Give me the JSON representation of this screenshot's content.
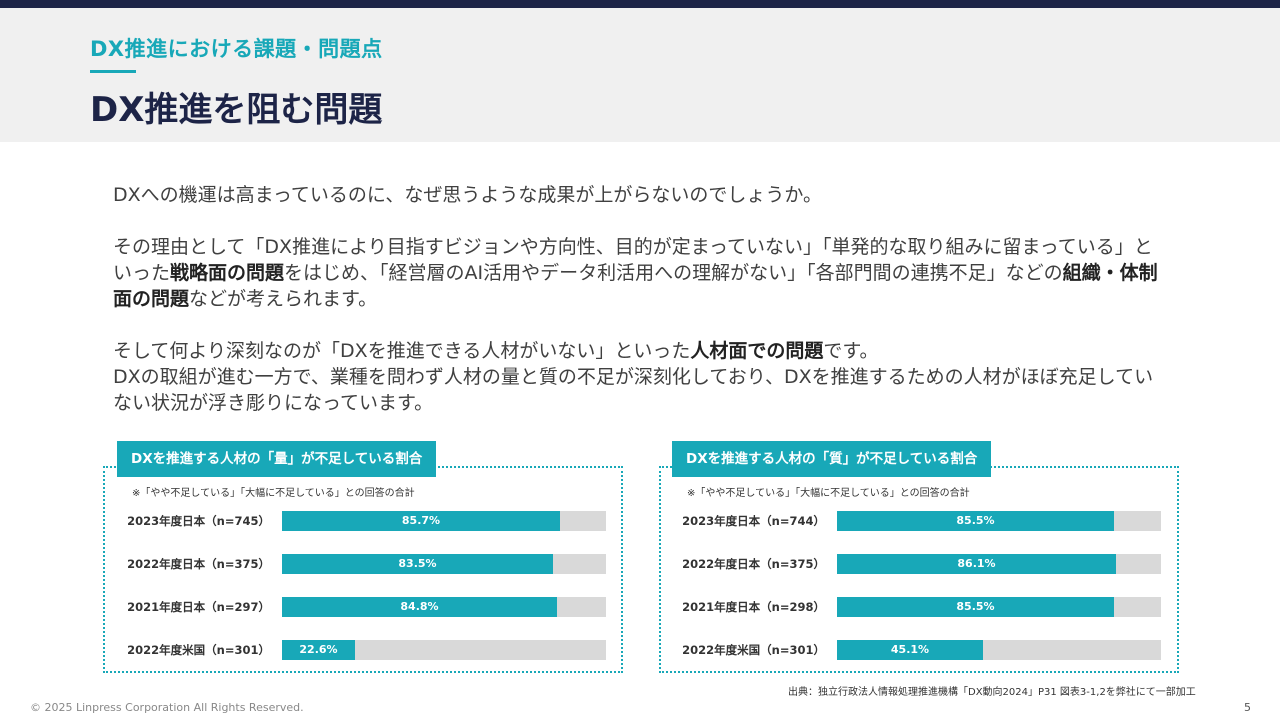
{
  "header": {
    "eyebrow": "DX推進における課題・問題点",
    "title": "DX推進を阻む問題"
  },
  "body": {
    "p1": "DXへの機運は高まっているのに、なぜ思うような成果が上がらないのでしょうか。",
    "p2": {
      "t1": "その理由として「DX推進により目指すビジョンや方向性、目的が定まっていない」「単発的な取り組みに留まっている」といった",
      "b1": "戦略面の問題",
      "t2": "をはじめ、「経営層のAI活用やデータ利活用への理解がない」「各部門間の連携不足」などの",
      "b2": "組織・体制面の問題",
      "t3": "などが考えられます。"
    },
    "p3": {
      "t1": "そして何より深刻なのが「DXを推進できる人材がいない」といった",
      "b1": "人材面での問題",
      "t2": "です。",
      "line2": "DXの取組が進む一方で、業種を問わず人材の量と質の不足が深刻化しており、DXを推進するための人材がほぼ充足していない状況が浮き彫りになっています。"
    }
  },
  "chart_data": [
    {
      "type": "bar",
      "title": "DXを推進する人材の「量」が不足している割合",
      "note": "※「やや不足している」「大幅に不足している」との回答の合計",
      "categories": [
        "2023年度日本（n=745）",
        "2022年度日本（n=375）",
        "2021年度日本（n=297）",
        "2022年度米国（n=301）"
      ],
      "values": [
        85.7,
        83.5,
        84.8,
        22.6
      ],
      "labels": [
        "85.7%",
        "83.5%",
        "84.8%",
        "22.6%"
      ],
      "xlim": [
        0,
        100
      ],
      "color": "#18a8b8",
      "track_color": "#d9d9d9"
    },
    {
      "type": "bar",
      "title": "DXを推進する人材の「質」が不足している割合",
      "note": "※「やや不足している」「大幅に不足している」との回答の合計",
      "categories": [
        "2023年度日本（n=744）",
        "2022年度日本（n=375）",
        "2021年度日本（n=298）",
        "2022年度米国（n=301）"
      ],
      "values": [
        85.5,
        86.1,
        85.5,
        45.1
      ],
      "labels": [
        "85.5%",
        "86.1%",
        "85.5%",
        "45.1%"
      ],
      "xlim": [
        0,
        100
      ],
      "color": "#18a8b8",
      "track_color": "#d9d9d9"
    }
  ],
  "footer": {
    "source": "出典：独立行政法人情報処理推進機構「DX動向2024」P31 図表3-1,2を弊社にて一部加工",
    "copyright": "© 2025 Linpress Corporation All Rights Reserved.",
    "page_number": "5"
  }
}
